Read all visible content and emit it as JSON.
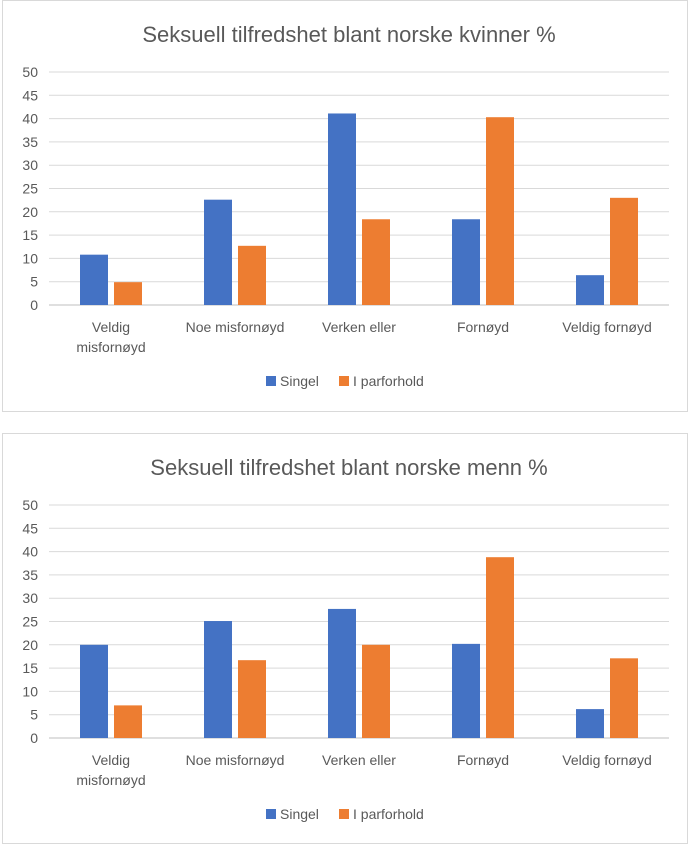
{
  "chart_data": [
    {
      "type": "bar",
      "title": "Seksuell tilfredshet blant norske kvinner %",
      "categories": [
        [
          "Veldig",
          "misfornøyd"
        ],
        [
          "Noe misfornøyd"
        ],
        [
          "Verken eller"
        ],
        [
          "Fornøyd"
        ],
        [
          "Veldig fornøyd"
        ]
      ],
      "series": [
        {
          "name": "Singel",
          "color": "#4472c4",
          "values": [
            10.8,
            22.6,
            41.1,
            18.4,
            6.4
          ]
        },
        {
          "name": "I parforhold",
          "color": "#ed7d31",
          "values": [
            4.9,
            12.7,
            18.4,
            40.3,
            23.0
          ]
        }
      ],
      "ylim": [
        0,
        50
      ],
      "yticks": [
        0,
        5,
        10,
        15,
        20,
        25,
        30,
        35,
        40,
        45,
        50
      ],
      "grid": true,
      "legend": "bottom"
    },
    {
      "type": "bar",
      "title": "Seksuell tilfredshet blant norske menn %",
      "categories": [
        [
          "Veldig",
          "misfornøyd"
        ],
        [
          "Noe misfornøyd"
        ],
        [
          "Verken eller"
        ],
        [
          "Fornøyd"
        ],
        [
          "Veldig fornøyd"
        ]
      ],
      "series": [
        {
          "name": "Singel",
          "color": "#4472c4",
          "values": [
            20.0,
            25.1,
            27.7,
            20.2,
            6.2
          ]
        },
        {
          "name": "I parforhold",
          "color": "#ed7d31",
          "values": [
            7.0,
            16.7,
            20.0,
            38.8,
            17.1
          ]
        }
      ],
      "ylim": [
        0,
        50
      ],
      "yticks": [
        0,
        5,
        10,
        15,
        20,
        25,
        30,
        35,
        40,
        45,
        50
      ],
      "grid": true,
      "legend": "bottom"
    }
  ]
}
